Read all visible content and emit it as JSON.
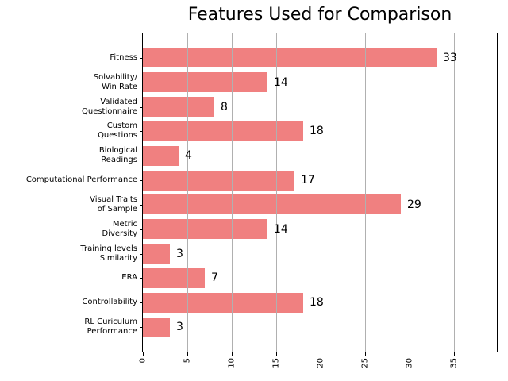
{
  "chart_data": {
    "type": "bar",
    "orientation": "horizontal",
    "title": "Features Used for Comparison",
    "categories": [
      "Fitness",
      "Solvability/\nWin Rate",
      "Validated\nQuestionnaire",
      "Custom\nQuestions",
      "Biological\nReadings",
      "Computational Performance",
      "Visual Traits\nof Sample",
      "Metric\nDiversity",
      "Training levels\nSimilarity",
      "ERA",
      "Controllability",
      "RL Curiculum\nPerformance"
    ],
    "values": [
      33,
      14,
      8,
      18,
      4,
      17,
      29,
      14,
      3,
      7,
      18,
      3
    ],
    "xlabel": "",
    "ylabel": "",
    "xlim": [
      0,
      39.8
    ],
    "xticks": [
      0,
      5,
      10,
      15,
      20,
      25,
      30,
      35
    ],
    "xtick_rotation": 90,
    "grid": true,
    "grid_above_bars": true,
    "legend": false,
    "value_labels": true,
    "bar_color": "#f08080",
    "grid_color": "#b0b0b0",
    "axis_color": "#000000",
    "text_color": "#000000",
    "background_color": "#ffffff"
  }
}
